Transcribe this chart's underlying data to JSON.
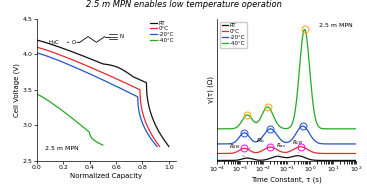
{
  "title": "2.5 m MPN enables low temperature operation",
  "left_xlabel": "Normalized Capacity",
  "left_ylabel": "Cell Voltage (V)",
  "left_ylim": [
    2.5,
    4.5
  ],
  "left_xlim": [
    0.0,
    1.05
  ],
  "right_xlabel": "Time Constant, τ (s)",
  "right_ylabel": "γ(τ) (Ω)",
  "colors": {
    "RT": "#111111",
    "0C": "#e8292e",
    "m20C": "#2255cc",
    "m40C": "#22aa22"
  },
  "legend_labels_left": [
    "RT",
    "0°C",
    "-20°C",
    "-40°C"
  ],
  "legend_labels_right": [
    "RT",
    "0°C",
    "-20°C",
    "-40°C"
  ],
  "label_25mpn": "2.5 m MPN",
  "background": "#ffffff"
}
